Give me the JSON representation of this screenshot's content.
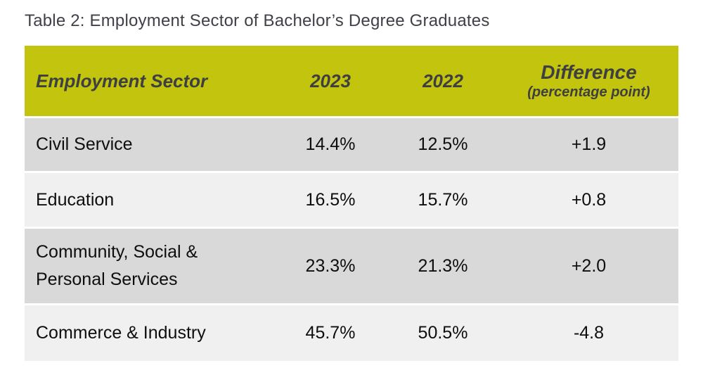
{
  "title": "Table 2: Employment Sector of Bachelor’s Degree Graduates",
  "colors": {
    "header_bg": "#c3c40e",
    "header_text": "#3e3f41",
    "row_dark": "#d9d9d9",
    "row_light": "#f0f0f0",
    "title_text": "#404049",
    "body_text": "#0e0e0e",
    "page_bg": "#ffffff"
  },
  "table": {
    "columns": [
      {
        "label": "Employment Sector",
        "sub": ""
      },
      {
        "label": "2023",
        "sub": ""
      },
      {
        "label": "2022",
        "sub": ""
      },
      {
        "label": "Difference",
        "sub": "(percentage point)"
      }
    ],
    "rows": [
      {
        "sector": "Civil Service",
        "y2023": "14.4%",
        "y2022": "12.5%",
        "diff": "+1.9"
      },
      {
        "sector": "Education",
        "y2023": "16.5%",
        "y2022": "15.7%",
        "diff": "+0.8"
      },
      {
        "sector": "Community, Social & Personal Services",
        "y2023": "23.3%",
        "y2022": "21.3%",
        "diff": "+2.0"
      },
      {
        "sector": "Commerce & Industry",
        "y2023": "45.7%",
        "y2022": "50.5%",
        "diff": "-4.8"
      }
    ]
  }
}
